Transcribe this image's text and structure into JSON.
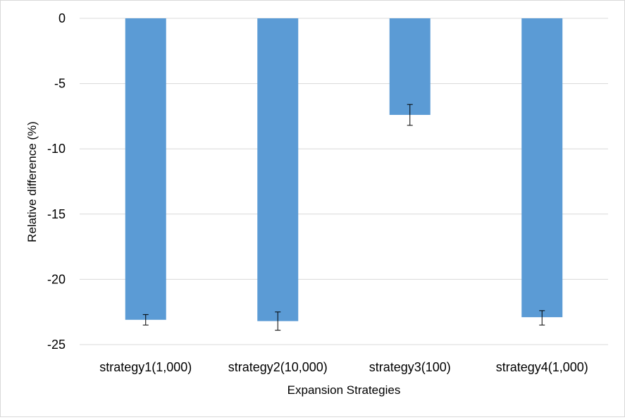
{
  "chart_data": {
    "type": "bar",
    "title": "",
    "xlabel": "Expansion Strategies",
    "ylabel": "Relative difference (%)",
    "categories": [
      "strategy1(1,000)",
      "strategy2(10,000)",
      "strategy3(100)",
      "strategy4(1,000)"
    ],
    "values": [
      -23.1,
      -23.2,
      -7.4,
      -22.9
    ],
    "error_low": [
      -23.5,
      -23.9,
      -8.2,
      -23.5
    ],
    "error_high": [
      -22.7,
      -22.5,
      -6.6,
      -22.4
    ],
    "ylim": [
      -25,
      0
    ],
    "yticks": [
      0,
      -5,
      -10,
      -15,
      -20,
      -25
    ],
    "ytick_labels": [
      "0",
      "-5",
      "-10",
      "-15",
      "-20",
      "-25"
    ],
    "grid": true,
    "legend": "none",
    "bar_color": "#5b9bd5",
    "grid_color": "#d9d9d9",
    "error_bar_color": "#000000"
  }
}
